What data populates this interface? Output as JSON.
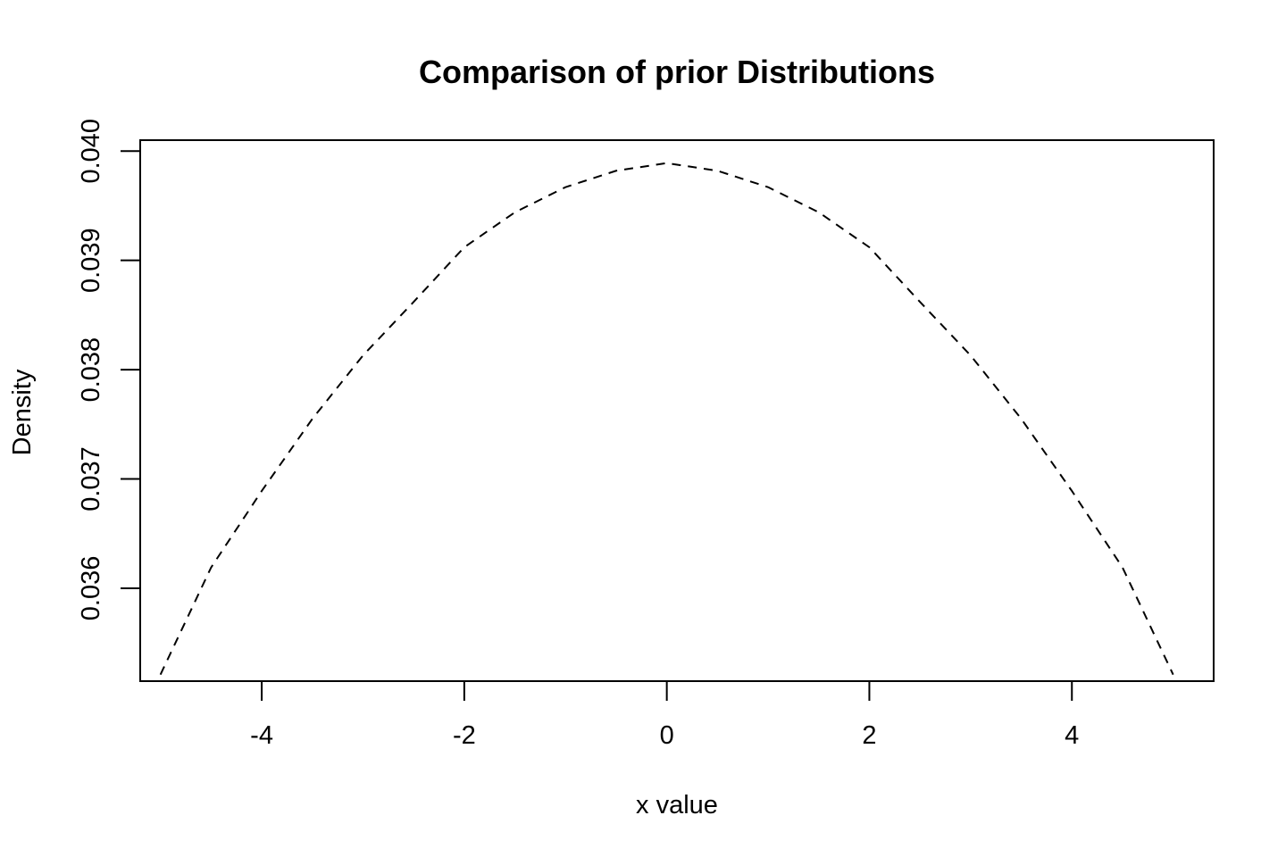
{
  "chart_data": {
    "type": "line",
    "title": "Comparison of prior Distributions",
    "xlabel": "x value",
    "ylabel": "Density",
    "xlim": [
      -5.2,
      5.4
    ],
    "ylim": [
      0.03515,
      0.0401
    ],
    "xticks": [
      {
        "value": -4,
        "label": "-4"
      },
      {
        "value": -2,
        "label": "-2"
      },
      {
        "value": 0,
        "label": "0"
      },
      {
        "value": 2,
        "label": "2"
      },
      {
        "value": 4,
        "label": "4"
      }
    ],
    "yticks": [
      {
        "value": 0.036,
        "label": "0.036"
      },
      {
        "value": 0.037,
        "label": "0.037"
      },
      {
        "value": 0.038,
        "label": "0.038"
      },
      {
        "value": 0.039,
        "label": "0.039"
      },
      {
        "value": 0.04,
        "label": "0.040"
      }
    ],
    "grid": false,
    "series": [
      {
        "line_style": "dashed",
        "color": "#000000",
        "x": [
          -5,
          -4.5,
          -4,
          -3.5,
          -3,
          -2.5,
          -2,
          -1.5,
          -1,
          -0.5,
          0,
          0.5,
          1,
          1.5,
          2,
          2.5,
          3,
          3.5,
          4,
          4.5,
          5
        ],
        "y": [
          0.03521,
          0.03619,
          0.03689,
          0.03755,
          0.03813,
          0.03862,
          0.03912,
          0.03944,
          0.03967,
          0.03982,
          0.03989,
          0.03982,
          0.03967,
          0.03944,
          0.03912,
          0.03862,
          0.03813,
          0.03755,
          0.03689,
          0.03619,
          0.03521
        ]
      }
    ]
  }
}
